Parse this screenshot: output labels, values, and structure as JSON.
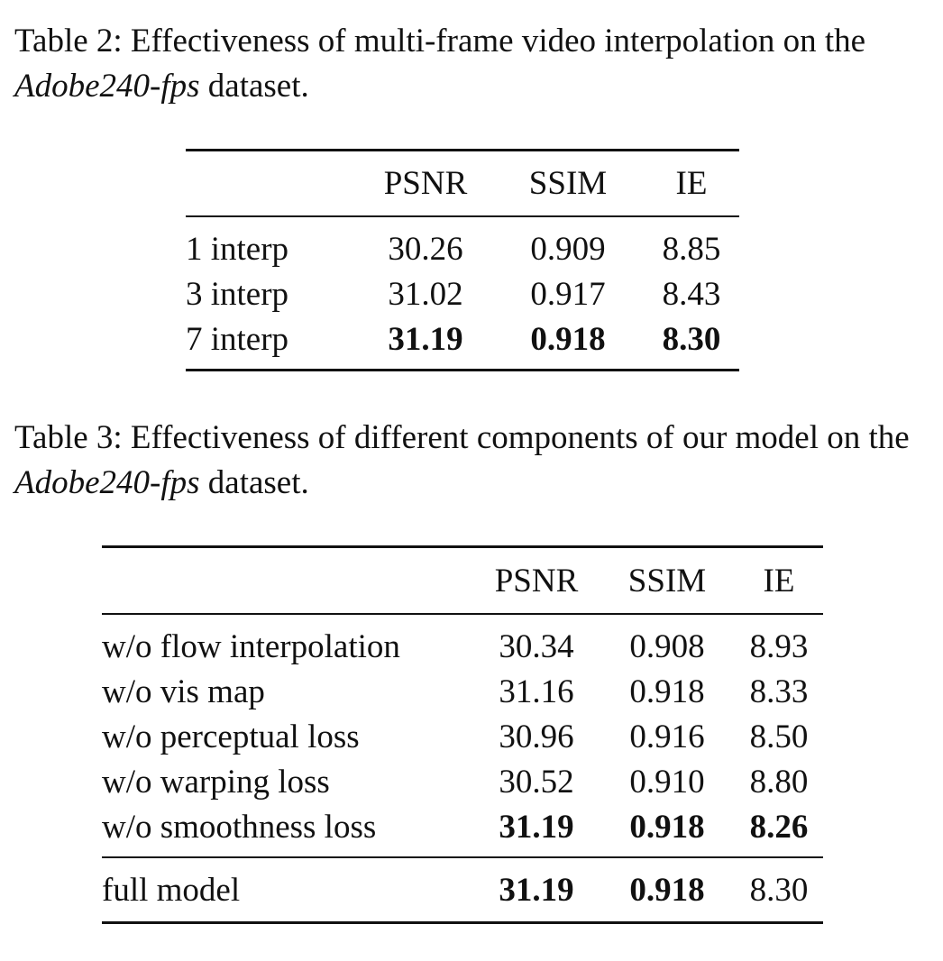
{
  "table2": {
    "caption_prefix": "Table 2: Effectiveness of multi-frame video interpolation on the ",
    "caption_dataset": "Adobe240-fps",
    "caption_suffix": " dataset.",
    "headers": [
      "",
      "PSNR",
      "SSIM",
      "IE"
    ],
    "rows": [
      {
        "label": "1 interp",
        "psnr": "30.26",
        "ssim": "0.909",
        "ie": "8.85",
        "bold": [
          false,
          false,
          false
        ]
      },
      {
        "label": "3 interp",
        "psnr": "31.02",
        "ssim": "0.917",
        "ie": "8.43",
        "bold": [
          false,
          false,
          false
        ]
      },
      {
        "label": "7 interp",
        "psnr": "31.19",
        "ssim": "0.918",
        "ie": "8.30",
        "bold": [
          true,
          true,
          true
        ]
      }
    ]
  },
  "table3": {
    "caption_prefix": "Table 3: Effectiveness of different components of our model on the ",
    "caption_dataset": "Adobe240-fps",
    "caption_suffix": " dataset.",
    "headers": [
      "",
      "PSNR",
      "SSIM",
      "IE"
    ],
    "rows": [
      {
        "label": "w/o flow interpolation",
        "psnr": "30.34",
        "ssim": "0.908",
        "ie": "8.93",
        "bold": [
          false,
          false,
          false
        ]
      },
      {
        "label": "w/o vis map",
        "psnr": "31.16",
        "ssim": "0.918",
        "ie": "8.33",
        "bold": [
          false,
          false,
          false
        ]
      },
      {
        "label": "w/o perceptual loss",
        "psnr": "30.96",
        "ssim": "0.916",
        "ie": "8.50",
        "bold": [
          false,
          false,
          false
        ]
      },
      {
        "label": "w/o warping loss",
        "psnr": "30.52",
        "ssim": "0.910",
        "ie": "8.80",
        "bold": [
          false,
          false,
          false
        ]
      },
      {
        "label": "w/o smoothness loss",
        "psnr": "31.19",
        "ssim": "0.918",
        "ie": "8.26",
        "bold": [
          true,
          true,
          true
        ]
      }
    ],
    "full_model": {
      "label": "full model",
      "psnr": "31.19",
      "ssim": "0.918",
      "ie": "8.30",
      "bold": [
        true,
        true,
        false
      ]
    }
  }
}
